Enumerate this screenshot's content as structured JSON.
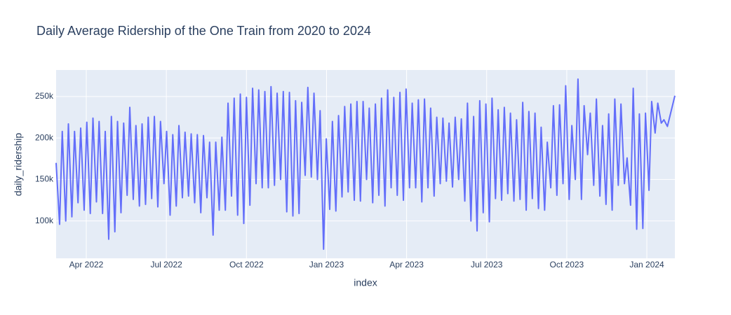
{
  "chart_data": {
    "type": "line",
    "title": "Daily Average Ridership of the One Train from 2020 to 2024",
    "x_label": "index",
    "y_label": "daily_ridership",
    "color": "#636efa",
    "grid": true,
    "xlim": [
      1.87,
      25.05
    ],
    "xticks": [
      {
        "value": 3,
        "label": "Apr 2022"
      },
      {
        "value": 6,
        "label": "Jul 2022"
      },
      {
        "value": 9,
        "label": "Oct 2022"
      },
      {
        "value": 12,
        "label": "Jan 2023"
      },
      {
        "value": 15,
        "label": "Apr 2023"
      },
      {
        "value": 18,
        "label": "Jul 2023"
      },
      {
        "value": 21,
        "label": "Oct 2023"
      },
      {
        "value": 24,
        "label": "Jan 2024"
      }
    ],
    "ylim": [
      55000,
      282000
    ],
    "yticks": [
      {
        "value": 100000,
        "label": "100k"
      },
      {
        "value": 150000,
        "label": "150k"
      },
      {
        "value": 200000,
        "label": "200k"
      },
      {
        "value": 250000,
        "label": "250k"
      }
    ],
    "x": [
      1.87,
      2.0,
      2.1,
      2.23,
      2.33,
      2.46,
      2.56,
      2.69,
      2.79,
      2.92,
      3.02,
      3.15,
      3.25,
      3.38,
      3.48,
      3.61,
      3.71,
      3.84,
      3.94,
      4.07,
      4.17,
      4.3,
      4.4,
      4.53,
      4.63,
      4.76,
      4.86,
      4.99,
      5.09,
      5.22,
      5.32,
      5.45,
      5.55,
      5.68,
      5.78,
      5.91,
      6.01,
      6.14,
      6.24,
      6.37,
      6.47,
      6.6,
      6.7,
      6.83,
      6.93,
      7.06,
      7.16,
      7.29,
      7.39,
      7.52,
      7.62,
      7.75,
      7.85,
      7.98,
      8.08,
      8.21,
      8.31,
      8.44,
      8.54,
      8.67,
      8.77,
      8.9,
      9.0,
      9.13,
      9.23,
      9.36,
      9.46,
      9.59,
      9.69,
      9.82,
      9.92,
      10.05,
      10.15,
      10.28,
      10.38,
      10.51,
      10.61,
      10.74,
      10.84,
      10.97,
      11.07,
      11.2,
      11.3,
      11.43,
      11.53,
      11.66,
      11.76,
      11.89,
      11.99,
      12.12,
      12.22,
      12.35,
      12.45,
      12.58,
      12.68,
      12.81,
      12.91,
      13.04,
      13.14,
      13.27,
      13.37,
      13.5,
      13.6,
      13.73,
      13.83,
      13.96,
      14.06,
      14.19,
      14.29,
      14.42,
      14.52,
      14.65,
      14.75,
      14.88,
      14.98,
      15.11,
      15.21,
      15.34,
      15.44,
      15.57,
      15.67,
      15.8,
      15.9,
      16.03,
      16.13,
      16.26,
      16.36,
      16.49,
      16.59,
      16.72,
      16.82,
      16.95,
      17.05,
      17.18,
      17.28,
      17.41,
      17.51,
      17.64,
      17.74,
      17.87,
      17.97,
      18.1,
      18.2,
      18.33,
      18.43,
      18.56,
      18.66,
      18.79,
      18.89,
      19.02,
      19.12,
      19.25,
      19.35,
      19.48,
      19.58,
      19.71,
      19.81,
      19.94,
      20.04,
      20.17,
      20.27,
      20.4,
      20.5,
      20.63,
      20.73,
      20.86,
      20.96,
      21.09,
      21.19,
      21.32,
      21.42,
      21.55,
      21.65,
      21.78,
      21.88,
      22.01,
      22.11,
      22.24,
      22.34,
      22.47,
      22.57,
      22.7,
      22.8,
      22.93,
      23.03,
      23.16,
      23.26,
      23.39,
      23.49,
      23.62,
      23.72,
      23.85,
      23.95,
      24.08,
      24.18,
      24.31,
      24.41,
      24.54,
      24.64,
      24.77,
      25.05
    ],
    "values": [
      170000,
      96000,
      208000,
      100000,
      217000,
      105000,
      208000,
      122000,
      212000,
      113000,
      219000,
      109000,
      224000,
      123000,
      220000,
      109000,
      208000,
      78000,
      226000,
      87000,
      220000,
      110000,
      218000,
      131000,
      237000,
      126000,
      215000,
      118000,
      217000,
      120000,
      225000,
      127000,
      226000,
      117000,
      220000,
      145000,
      208000,
      107000,
      204000,
      118000,
      215000,
      128000,
      207000,
      130000,
      205000,
      122000,
      204000,
      110000,
      203000,
      128000,
      195000,
      83000,
      195000,
      113000,
      201000,
      113000,
      242000,
      130000,
      248000,
      107000,
      253000,
      97000,
      249000,
      119000,
      260000,
      145000,
      258000,
      140000,
      256000,
      140000,
      262000,
      143000,
      254000,
      150000,
      256000,
      111000,
      255000,
      106000,
      245000,
      109000,
      243000,
      155000,
      261000,
      153000,
      254000,
      150000,
      233000,
      66000,
      199000,
      114000,
      220000,
      112000,
      227000,
      129000,
      238000,
      135000,
      241000,
      125000,
      244000,
      124000,
      244000,
      150000,
      236000,
      122000,
      241000,
      131000,
      248000,
      118000,
      258000,
      140000,
      249000,
      131000,
      255000,
      125000,
      259000,
      140000,
      242000,
      140000,
      246000,
      123000,
      247000,
      140000,
      236000,
      130000,
      225000,
      145000,
      224000,
      148000,
      218000,
      141000,
      225000,
      150000,
      223000,
      124000,
      242000,
      100000,
      226000,
      88000,
      245000,
      110000,
      241000,
      99000,
      248000,
      127000,
      234000,
      125000,
      237000,
      133000,
      230000,
      124000,
      222000,
      126000,
      243000,
      113000,
      232000,
      127000,
      230000,
      115000,
      213000,
      113000,
      195000,
      140000,
      239000,
      131000,
      240000,
      145000,
      263000,
      126000,
      215000,
      150000,
      271000,
      126000,
      239000,
      180000,
      230000,
      143000,
      247000,
      130000,
      215000,
      120000,
      229000,
      113000,
      247000,
      143000,
      241000,
      145000,
      176000,
      119000,
      260000,
      90000,
      229000,
      91000,
      230000,
      137000,
      244000,
      206000,
      242000,
      218000,
      222000,
      214000,
      251000
    ]
  }
}
